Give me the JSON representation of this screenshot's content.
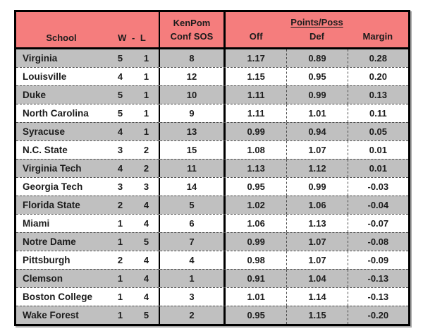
{
  "colors": {
    "header_bg": "#F57D7D",
    "alt_row_bg": "#C0C0C0",
    "row_bg": "#FFFFFF",
    "border": "#000000",
    "text": "#1C1C1C"
  },
  "header": {
    "school": "School",
    "wl": "W - L",
    "kenpom_line1": "KenPom",
    "kenpom_line2": "Conf SOS",
    "points_poss": "Points/Poss",
    "off": "Off",
    "def": "Def",
    "margin": "Margin"
  },
  "chart_data": {
    "type": "table",
    "column_keys": [
      "school",
      "w",
      "l",
      "sos",
      "off",
      "def",
      "margin"
    ],
    "column_headers": [
      "School",
      "W",
      "L",
      "KenPom Conf SOS",
      "Points/Poss Off",
      "Points/Poss Def",
      "Points/Poss Margin"
    ],
    "rows": [
      {
        "school": "Virginia",
        "w": "5",
        "l": "1",
        "sos": "8",
        "off": "1.17",
        "def": "0.89",
        "margin": "0.28"
      },
      {
        "school": "Louisville",
        "w": "4",
        "l": "1",
        "sos": "12",
        "off": "1.15",
        "def": "0.95",
        "margin": "0.20"
      },
      {
        "school": "Duke",
        "w": "5",
        "l": "1",
        "sos": "10",
        "off": "1.11",
        "def": "0.99",
        "margin": "0.13"
      },
      {
        "school": "North Carolina",
        "w": "5",
        "l": "1",
        "sos": "9",
        "off": "1.11",
        "def": "1.01",
        "margin": "0.11"
      },
      {
        "school": "Syracuse",
        "w": "4",
        "l": "1",
        "sos": "13",
        "off": "0.99",
        "def": "0.94",
        "margin": "0.05"
      },
      {
        "school": "N.C. State",
        "w": "3",
        "l": "2",
        "sos": "15",
        "off": "1.08",
        "def": "1.07",
        "margin": "0.01"
      },
      {
        "school": "Virginia Tech",
        "w": "4",
        "l": "2",
        "sos": "11",
        "off": "1.13",
        "def": "1.12",
        "margin": "0.01"
      },
      {
        "school": "Georgia Tech",
        "w": "3",
        "l": "3",
        "sos": "14",
        "off": "0.95",
        "def": "0.99",
        "margin": "-0.03"
      },
      {
        "school": "Florida State",
        "w": "2",
        "l": "4",
        "sos": "5",
        "off": "1.02",
        "def": "1.06",
        "margin": "-0.04"
      },
      {
        "school": "Miami",
        "w": "1",
        "l": "4",
        "sos": "6",
        "off": "1.06",
        "def": "1.13",
        "margin": "-0.07"
      },
      {
        "school": "Notre Dame",
        "w": "1",
        "l": "5",
        "sos": "7",
        "off": "0.99",
        "def": "1.07",
        "margin": "-0.08"
      },
      {
        "school": "Pittsburgh",
        "w": "2",
        "l": "4",
        "sos": "4",
        "off": "0.98",
        "def": "1.07",
        "margin": "-0.09"
      },
      {
        "school": "Clemson",
        "w": "1",
        "l": "4",
        "sos": "1",
        "off": "0.91",
        "def": "1.04",
        "margin": "-0.13"
      },
      {
        "school": "Boston College",
        "w": "1",
        "l": "4",
        "sos": "3",
        "off": "1.01",
        "def": "1.14",
        "margin": "-0.13"
      },
      {
        "school": "Wake Forest",
        "w": "1",
        "l": "5",
        "sos": "2",
        "off": "0.95",
        "def": "1.15",
        "margin": "-0.20"
      }
    ]
  }
}
